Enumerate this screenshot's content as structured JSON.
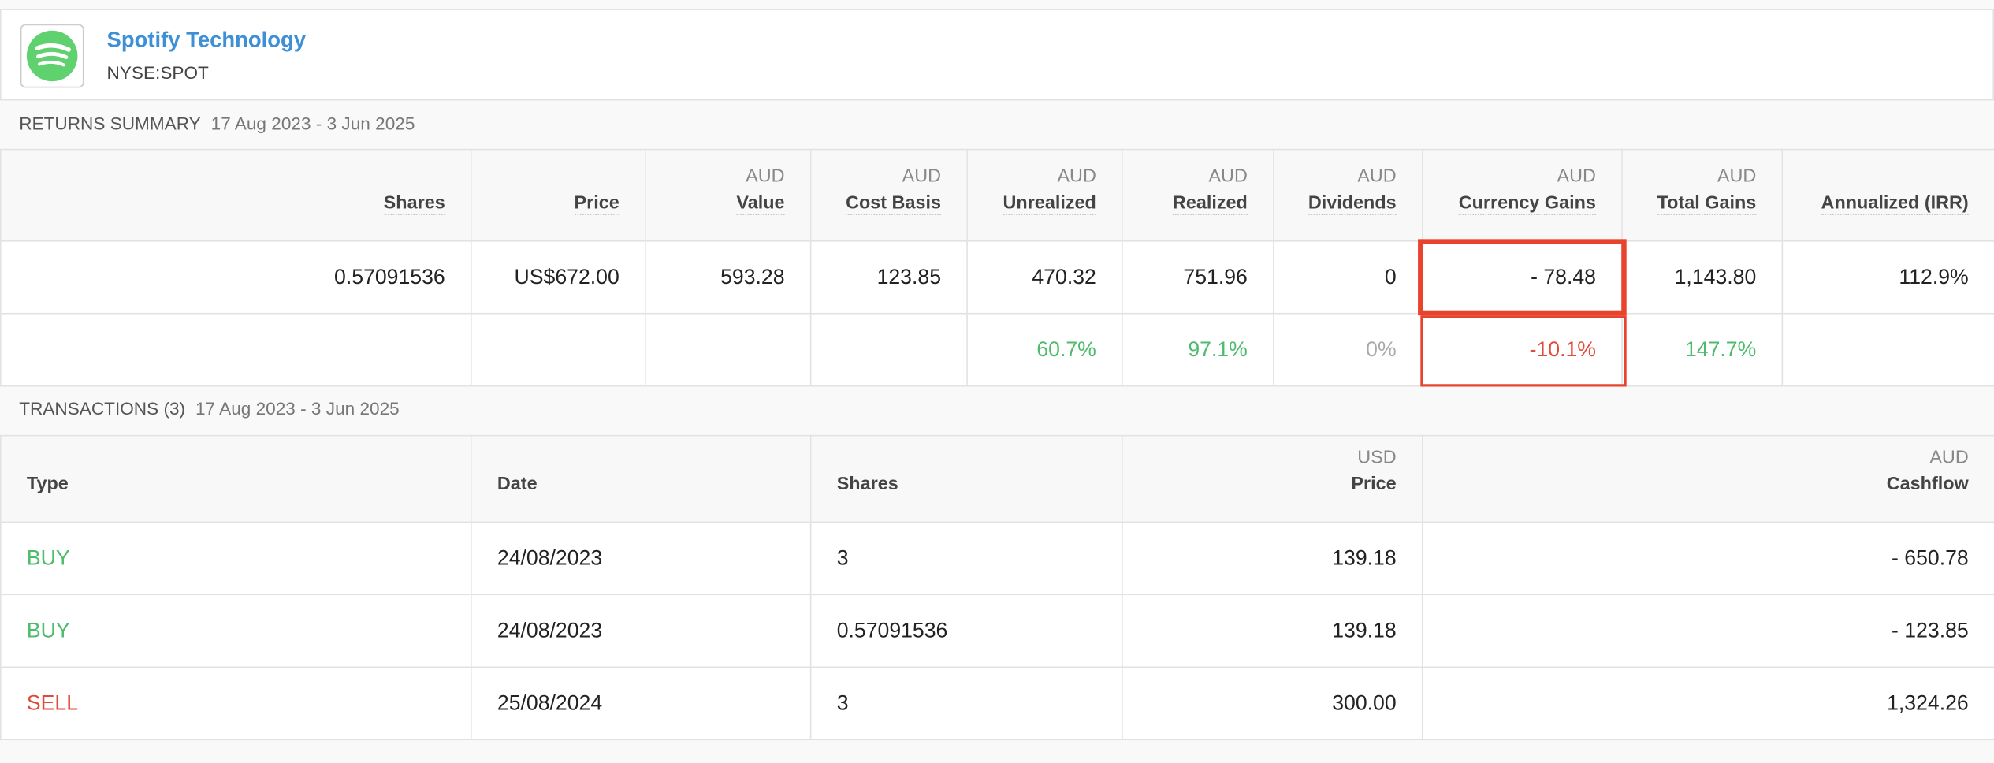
{
  "header": {
    "name": "Spotify Technology",
    "ticker": "NYSE:SPOT"
  },
  "returns_summary": {
    "title": "RETURNS SUMMARY",
    "date_range": "17 Aug 2023 - 3 Jun 2025",
    "columns": [
      {
        "label": "Shares"
      },
      {
        "label": "Price"
      },
      {
        "currency": "AUD",
        "label": "Value"
      },
      {
        "currency": "AUD",
        "label": "Cost Basis"
      },
      {
        "currency": "AUD",
        "label": "Unrealized"
      },
      {
        "currency": "AUD",
        "label": "Realized"
      },
      {
        "currency": "AUD",
        "label": "Dividends"
      },
      {
        "currency": "AUD",
        "label": "Currency Gains"
      },
      {
        "currency": "AUD",
        "label": "Total Gains"
      },
      {
        "label": "Annualized (IRR)"
      }
    ],
    "rows": [
      [
        "0.57091536",
        "US$672.00",
        "593.28",
        "123.85",
        "470.32",
        "751.96",
        "0",
        "- 78.48",
        "1,143.80",
        "112.9%"
      ],
      [
        null,
        null,
        null,
        null,
        "60.7%",
        "97.1%",
        "0%",
        "-10.1%",
        "147.7%",
        null
      ]
    ],
    "row_colors": [
      [
        "#222",
        "#222",
        "#222",
        "#222",
        "#222",
        "#222",
        "#222",
        "#222",
        "#222",
        "#222"
      ],
      [
        "#222",
        "#222",
        "#222",
        "#222",
        "#4cbb6c",
        "#4cbb6c",
        "#aaaaaa",
        "#e04a3a",
        "#4cbb6c",
        "#222"
      ]
    ],
    "highlight_column": 7
  },
  "transactions": {
    "title": "TRANSACTIONS (3)",
    "date_range": "17 Aug 2023 - 3 Jun 2025",
    "columns": [
      {
        "label": "Type"
      },
      {
        "label": "Date"
      },
      {
        "label": "Shares"
      },
      {
        "currency": "USD",
        "label": "Price"
      },
      {
        "currency": "AUD",
        "label": "Cashflow"
      }
    ],
    "rows": [
      [
        "BUY",
        "24/08/2023",
        "3",
        "139.18",
        "- 650.78"
      ],
      [
        "BUY",
        "24/08/2023",
        "0.57091536",
        "139.18",
        "- 123.85"
      ],
      [
        "SELL",
        "25/08/2024",
        "3",
        "300.00",
        "1,324.26"
      ]
    ],
    "type_colors": {
      "BUY": "#4cbb6c",
      "SELL": "#e04a3a"
    }
  }
}
